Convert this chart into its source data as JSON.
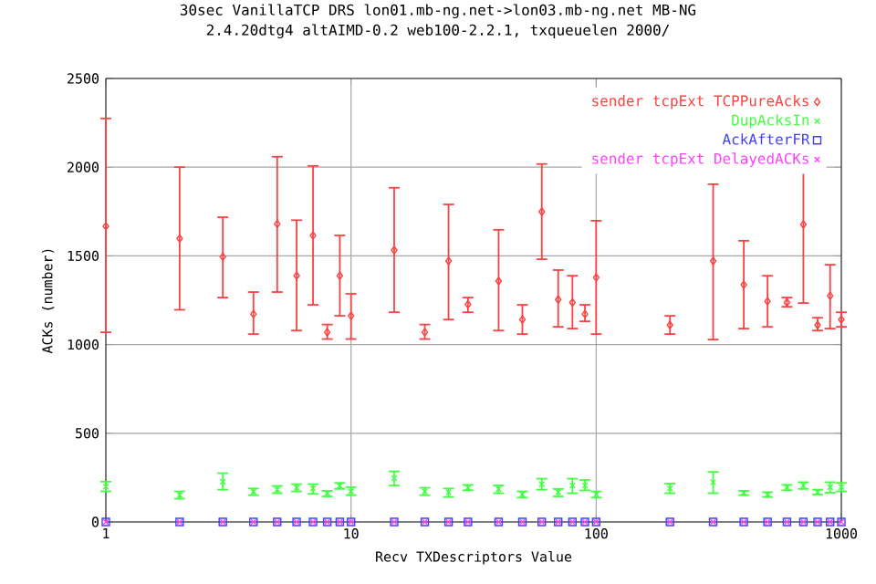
{
  "chart_data": {
    "type": "scatter",
    "title": "30sec VanillaTCP DRS lon01.mb-ng.net->lon03.mb-ng.net MB-NG",
    "subtitle": "2.4.20dtg4 altAIMD-0.2 web100-2.2.1, txqueuelen 2000/",
    "xlabel": "Recv TXDescriptors Value",
    "ylabel": "ACKs (number)",
    "x": [
      1,
      2,
      3,
      4,
      5,
      6,
      7,
      8,
      9,
      10,
      15,
      20,
      25,
      30,
      40,
      50,
      60,
      70,
      80,
      90,
      100,
      200,
      300,
      400,
      500,
      600,
      700,
      800,
      900,
      1000
    ],
    "log": "x",
    "xlim": [
      1,
      1000
    ],
    "xticks": [
      1,
      10,
      100,
      1000
    ],
    "ylim": [
      0,
      2500
    ],
    "yticks": [
      0,
      500,
      1000,
      1500,
      2000,
      2500
    ],
    "grid": true,
    "legend": "top right",
    "series": [
      {
        "name": "sender tcpExt TCPPureAcks",
        "color": "#ff4040",
        "marker": "diamond",
        "values": [
          1667,
          1598,
          1495,
          1172,
          1680,
          1388,
          1615,
          1069,
          1388,
          1162,
          1533,
          1069,
          1471,
          1227,
          1358,
          1141,
          1749,
          1254,
          1237,
          1172,
          1378,
          1110,
          1471,
          1337,
          1244,
          1237,
          1677,
          1110,
          1275,
          1141
        ],
        "errors": [
          [
            1069,
            2275
          ],
          [
            1196,
            2000
          ],
          [
            1265,
            1718
          ],
          [
            1059,
            1296
          ],
          [
            1296,
            2059
          ],
          [
            1079,
            1701
          ],
          [
            1224,
            2007
          ],
          [
            1031,
            1113
          ],
          [
            1162,
            1615
          ],
          [
            1031,
            1286
          ],
          [
            1182,
            1884
          ],
          [
            1031,
            1113
          ],
          [
            1141,
            1790
          ],
          [
            1182,
            1265
          ],
          [
            1079,
            1647
          ],
          [
            1059,
            1224
          ],
          [
            1481,
            2018
          ],
          [
            1100,
            1420
          ],
          [
            1090,
            1388
          ],
          [
            1131,
            1224
          ],
          [
            1059,
            1698
          ],
          [
            1059,
            1162
          ],
          [
            1028,
            1904
          ],
          [
            1090,
            1585
          ],
          [
            1100,
            1388
          ],
          [
            1213,
            1265
          ],
          [
            1234,
            2110
          ],
          [
            1079,
            1151
          ],
          [
            1090,
            1450
          ],
          [
            1100,
            1182
          ]
        ]
      },
      {
        "name": "DupAcksIn",
        "color": "#40ff40",
        "marker": "cross",
        "values": [
          199,
          151,
          227,
          172,
          182,
          193,
          189,
          162,
          203,
          172,
          247,
          172,
          168,
          193,
          186,
          155,
          213,
          168,
          206,
          206,
          155,
          189,
          224,
          165,
          155,
          196,
          206,
          168,
          196,
          196
        ],
        "errors": [
          [
            172,
            227
          ],
          [
            131,
            172
          ],
          [
            182,
            275
          ],
          [
            151,
            189
          ],
          [
            162,
            203
          ],
          [
            172,
            213
          ],
          [
            158,
            213
          ],
          [
            144,
            175
          ],
          [
            186,
            220
          ],
          [
            151,
            196
          ],
          [
            206,
            285
          ],
          [
            151,
            193
          ],
          [
            141,
            189
          ],
          [
            178,
            209
          ],
          [
            162,
            206
          ],
          [
            137,
            172
          ],
          [
            182,
            244
          ],
          [
            144,
            186
          ],
          [
            162,
            244
          ],
          [
            178,
            237
          ],
          [
            137,
            172
          ],
          [
            162,
            216
          ],
          [
            162,
            282
          ],
          [
            151,
            175
          ],
          [
            141,
            168
          ],
          [
            178,
            209
          ],
          [
            186,
            224
          ],
          [
            155,
            182
          ],
          [
            165,
            224
          ],
          [
            172,
            220
          ]
        ]
      },
      {
        "name": "AckAfterFR",
        "color": "#4040ff",
        "marker": "square",
        "values": [
          0,
          0,
          0,
          0,
          0,
          0,
          0,
          0,
          0,
          0,
          0,
          0,
          0,
          0,
          0,
          0,
          0,
          0,
          0,
          0,
          0,
          0,
          0,
          0,
          0,
          0,
          0,
          0,
          0,
          0
        ]
      },
      {
        "name": "sender tcpExt DelayedACKs",
        "color": "#ff40ff",
        "marker": "cross",
        "values": [
          0,
          0,
          0,
          0,
          0,
          0,
          0,
          0,
          0,
          0,
          0,
          0,
          0,
          0,
          0,
          0,
          0,
          0,
          0,
          0,
          0,
          0,
          0,
          0,
          0,
          0,
          0,
          0,
          0,
          0
        ]
      }
    ]
  }
}
